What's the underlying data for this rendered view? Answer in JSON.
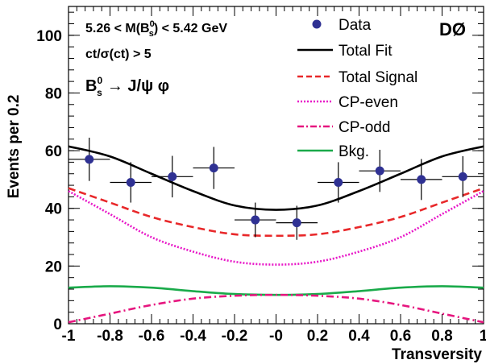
{
  "chart_data": {
    "type": "scatter",
    "xlabel": "Transversity",
    "ylabel": "Events per 0.2",
    "xlim": [
      -1,
      1
    ],
    "ylim": [
      0,
      110
    ],
    "x_ticks": [
      -1,
      -0.8,
      -0.6,
      -0.4,
      -0.2,
      0,
      0.2,
      0.4,
      0.6,
      0.8,
      1
    ],
    "x_tick_labels": [
      "-1",
      "-0.8",
      "-0.6",
      "-0.4",
      "-0.2",
      "-0",
      "0.2",
      "0.4",
      "0.6",
      "0.8",
      "1"
    ],
    "y_ticks": [
      0,
      20,
      40,
      60,
      80,
      100
    ],
    "y_tick_labels": [
      "0",
      "20",
      "40",
      "60",
      "80",
      "100"
    ],
    "experiment_label": "DØ",
    "annotations": {
      "mass_cut_left": "5.26 < M(B",
      "mass_cut_meson_sup": "0",
      "mass_cut_meson_sub": "s",
      "mass_cut_right": ") < 5.42 GeV",
      "ct_cut": "ct/σ(ct) > 5",
      "decay_B": "B",
      "decay_sup": "0",
      "decay_sub": "s",
      "decay_products": "→ J/ψ φ"
    },
    "legend": {
      "placement": "top-right",
      "entries": [
        {
          "label": "Data",
          "style": "marker",
          "color": "#2f3193"
        },
        {
          "label": "Total Fit",
          "style": "solid",
          "color": "#000000"
        },
        {
          "label": "Total Signal",
          "style": "dashed",
          "color": "#e8282a"
        },
        {
          "label": "CP-even",
          "style": "dotted",
          "color": "#e818c8"
        },
        {
          "label": "CP-odd",
          "style": "dashdot",
          "color": "#e6167f"
        },
        {
          "label": "Bkg.",
          "style": "solid",
          "color": "#1aaa4a"
        }
      ]
    },
    "data_points": {
      "name": "Data",
      "x": [
        -0.9,
        -0.7,
        -0.5,
        -0.3,
        -0.1,
        0.1,
        0.3,
        0.5,
        0.7,
        0.9
      ],
      "y": [
        57,
        49,
        51,
        54,
        36,
        35,
        49,
        53,
        50,
        51
      ],
      "yerr": [
        7.5,
        7,
        7.2,
        7.3,
        6,
        5.9,
        7,
        7.3,
        7.1,
        7.1
      ],
      "xerr": 0.1
    },
    "curves": [
      {
        "name": "Total Fit",
        "x": [
          -1,
          -0.8,
          -0.6,
          -0.4,
          -0.2,
          0,
          0.2,
          0.4,
          0.6,
          0.8,
          1
        ],
        "y": [
          61.5,
          58,
          52,
          46,
          41,
          39.5,
          41,
          46,
          52,
          58,
          61.5
        ]
      },
      {
        "name": "Total Signal",
        "x": [
          -1,
          -0.8,
          -0.6,
          -0.4,
          -0.2,
          0,
          0.2,
          0.4,
          0.6,
          0.8,
          1
        ],
        "y": [
          47,
          42,
          37,
          33.5,
          31,
          30.5,
          31,
          33.5,
          37,
          42,
          47
        ]
      },
      {
        "name": "CP-even",
        "x": [
          -1,
          -0.8,
          -0.6,
          -0.4,
          -0.2,
          0,
          0.2,
          0.4,
          0.6,
          0.8,
          1
        ],
        "y": [
          46,
          38,
          30,
          25,
          21.5,
          20.5,
          21.5,
          25,
          30,
          38,
          46
        ]
      },
      {
        "name": "CP-odd",
        "x": [
          -1,
          -0.8,
          -0.6,
          -0.4,
          -0.2,
          0,
          0.2,
          0.4,
          0.6,
          0.8,
          1
        ],
        "y": [
          0.5,
          3.5,
          6.5,
          8.7,
          9.7,
          10,
          9.7,
          8.7,
          6.5,
          3.5,
          0.5
        ]
      },
      {
        "name": "Bkg.",
        "x": [
          -1,
          -0.8,
          -0.6,
          -0.4,
          -0.2,
          0,
          0.2,
          0.4,
          0.6,
          0.8,
          1
        ],
        "y": [
          12.5,
          13,
          12.5,
          11.3,
          10.3,
          10,
          10.3,
          11.3,
          12.5,
          13,
          12.5
        ]
      }
    ]
  }
}
